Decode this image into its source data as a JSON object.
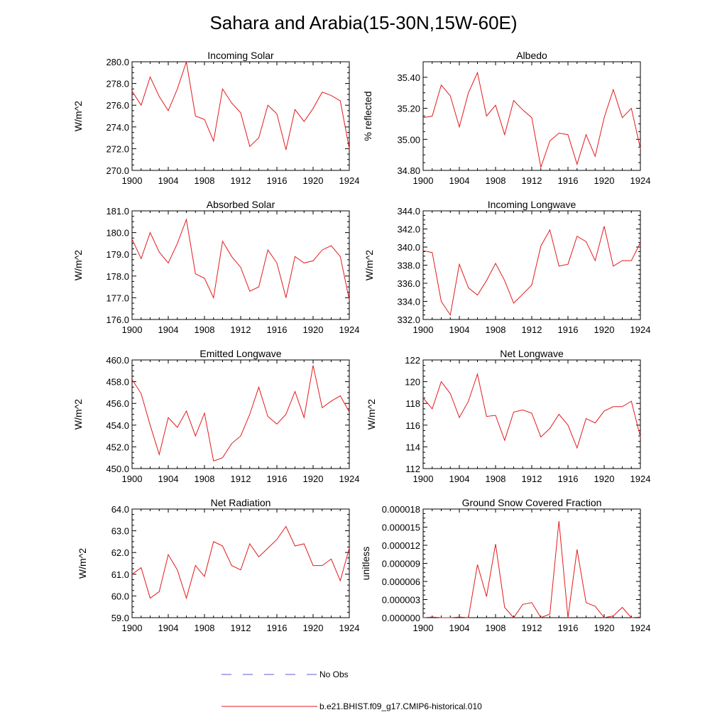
{
  "figure": {
    "title": "Sahara and Arabia(15-30N,15W-60E)"
  },
  "legend": {
    "items": [
      {
        "label": "No Obs",
        "color": "#5b5bd6",
        "style": "dashed"
      },
      {
        "label": "b.e21.BHIST.f09_g17.CMIP6-historical.010",
        "color": "#e31a1c",
        "style": "solid"
      }
    ]
  },
  "colors": {
    "series": "#e31a1c",
    "obs": "#5b5bd6"
  },
  "chart_data": [
    {
      "type": "line",
      "title": "Incoming Solar",
      "ylabel": "W/m^2",
      "xlim": [
        1900,
        1924
      ],
      "ylim": [
        270.0,
        280.0
      ],
      "xticks": [
        1900,
        1904,
        1908,
        1912,
        1916,
        1920,
        1924
      ],
      "xtick_labels": [
        "1900",
        "1904",
        "1908",
        "1912",
        "1916",
        "1920",
        "1924"
      ],
      "yticks": [
        270,
        272,
        274,
        276,
        278,
        280
      ],
      "ytick_labels": [
        "270.0",
        "272.0",
        "274.0",
        "276.0",
        "278.0",
        "280.0"
      ],
      "x": [
        1900,
        1901,
        1902,
        1903,
        1904,
        1905,
        1906,
        1907,
        1908,
        1909,
        1910,
        1911,
        1912,
        1913,
        1914,
        1915,
        1916,
        1917,
        1918,
        1919,
        1920,
        1921,
        1922,
        1923,
        1924
      ],
      "series": [
        {
          "name": "b.e21.BHIST.f09_g17.CMIP6-historical.010",
          "values": [
            277.3,
            276.0,
            278.6,
            276.8,
            275.5,
            277.5,
            280.0,
            275.0,
            274.7,
            272.7,
            277.5,
            276.2,
            275.3,
            272.2,
            273.0,
            276.0,
            275.2,
            271.9,
            275.6,
            274.5,
            275.7,
            277.2,
            276.9,
            276.4,
            272.0
          ]
        }
      ]
    },
    {
      "type": "line",
      "title": "Albedo",
      "ylabel": "% reflected",
      "xlim": [
        1900,
        1924
      ],
      "ylim": [
        34.8,
        35.5
      ],
      "xticks": [
        1900,
        1904,
        1908,
        1912,
        1916,
        1920,
        1924
      ],
      "xtick_labels": [
        "1900",
        "1904",
        "1908",
        "1912",
        "1916",
        "1920",
        "1924"
      ],
      "yticks": [
        34.8,
        35.0,
        35.2,
        35.4
      ],
      "ytick_labels": [
        "34.80",
        "35.00",
        "35.20",
        "35.40"
      ],
      "x": [
        1900,
        1901,
        1902,
        1903,
        1904,
        1905,
        1906,
        1907,
        1908,
        1909,
        1910,
        1911,
        1912,
        1913,
        1914,
        1915,
        1916,
        1917,
        1918,
        1919,
        1920,
        1921,
        1922,
        1923,
        1924
      ],
      "series": [
        {
          "name": "b.e21.BHIST.f09_g17.CMIP6-historical.010",
          "values": [
            35.14,
            35.15,
            35.35,
            35.28,
            35.08,
            35.3,
            35.43,
            35.15,
            35.22,
            35.03,
            35.25,
            35.19,
            35.14,
            34.82,
            34.99,
            35.04,
            35.03,
            34.84,
            35.03,
            34.89,
            35.14,
            35.32,
            35.14,
            35.2,
            34.94
          ]
        }
      ]
    },
    {
      "type": "line",
      "title": "Absorbed Solar",
      "ylabel": "W/m^2",
      "xlim": [
        1900,
        1924
      ],
      "ylim": [
        176.0,
        181.0
      ],
      "xticks": [
        1900,
        1904,
        1908,
        1912,
        1916,
        1920,
        1924
      ],
      "xtick_labels": [
        "1900",
        "1904",
        "1908",
        "1912",
        "1916",
        "1920",
        "1924"
      ],
      "yticks": [
        176,
        177,
        178,
        179,
        180,
        181
      ],
      "ytick_labels": [
        "176.0",
        "177.0",
        "178.0",
        "179.0",
        "180.0",
        "181.0"
      ],
      "x": [
        1900,
        1901,
        1902,
        1903,
        1904,
        1905,
        1906,
        1907,
        1908,
        1909,
        1910,
        1911,
        1912,
        1913,
        1914,
        1915,
        1916,
        1917,
        1918,
        1919,
        1920,
        1921,
        1922,
        1923,
        1924
      ],
      "series": [
        {
          "name": "b.e21.BHIST.f09_g17.CMIP6-historical.010",
          "values": [
            179.7,
            178.8,
            180.0,
            179.1,
            178.6,
            179.5,
            180.6,
            178.1,
            177.9,
            177.0,
            179.6,
            178.9,
            178.4,
            177.3,
            177.5,
            179.2,
            178.6,
            177.0,
            178.9,
            178.6,
            178.7,
            179.2,
            179.4,
            178.9,
            176.9
          ]
        }
      ]
    },
    {
      "type": "line",
      "title": "Incoming Longwave",
      "ylabel": "W/m^2",
      "xlim": [
        1900,
        1924
      ],
      "ylim": [
        332.0,
        344.0
      ],
      "xticks": [
        1900,
        1904,
        1908,
        1912,
        1916,
        1920,
        1924
      ],
      "xtick_labels": [
        "1900",
        "1904",
        "1908",
        "1912",
        "1916",
        "1920",
        "1924"
      ],
      "yticks": [
        332,
        334,
        336,
        338,
        340,
        342,
        344
      ],
      "ytick_labels": [
        "332.0",
        "334.0",
        "336.0",
        "338.0",
        "340.0",
        "342.0",
        "344.0"
      ],
      "x": [
        1900,
        1901,
        1902,
        1903,
        1904,
        1905,
        1906,
        1907,
        1908,
        1909,
        1910,
        1911,
        1912,
        1913,
        1914,
        1915,
        1916,
        1917,
        1918,
        1919,
        1920,
        1921,
        1922,
        1923,
        1924
      ],
      "series": [
        {
          "name": "b.e21.BHIST.f09_g17.CMIP6-historical.010",
          "values": [
            339.6,
            339.4,
            334.0,
            332.5,
            338.1,
            335.5,
            334.7,
            336.3,
            338.2,
            336.3,
            333.8,
            334.8,
            335.8,
            340.1,
            341.9,
            337.9,
            338.1,
            341.2,
            340.6,
            338.5,
            342.3,
            337.9,
            338.5,
            338.5,
            340.5
          ]
        }
      ]
    },
    {
      "type": "line",
      "title": "Emitted Longwave",
      "ylabel": "W/m^2",
      "xlim": [
        1900,
        1924
      ],
      "ylim": [
        450.0,
        460.0
      ],
      "xticks": [
        1900,
        1904,
        1908,
        1912,
        1916,
        1920,
        1924
      ],
      "xtick_labels": [
        "1900",
        "1904",
        "1908",
        "1912",
        "1916",
        "1920",
        "1924"
      ],
      "yticks": [
        450,
        452,
        454,
        456,
        458,
        460
      ],
      "ytick_labels": [
        "450.0",
        "452.0",
        "454.0",
        "456.0",
        "458.0",
        "460.0"
      ],
      "x": [
        1900,
        1901,
        1902,
        1903,
        1904,
        1905,
        1906,
        1907,
        1908,
        1909,
        1910,
        1911,
        1912,
        1913,
        1914,
        1915,
        1916,
        1917,
        1918,
        1919,
        1920,
        1921,
        1922,
        1923,
        1924
      ],
      "series": [
        {
          "name": "b.e21.BHIST.f09_g17.CMIP6-historical.010",
          "values": [
            458.2,
            456.9,
            454.0,
            451.3,
            454.7,
            453.8,
            455.3,
            453.0,
            455.1,
            450.7,
            451.0,
            452.3,
            453.0,
            455.0,
            457.5,
            454.8,
            454.1,
            455.0,
            457.1,
            454.7,
            459.5,
            455.6,
            456.2,
            456.7,
            455.2
          ]
        }
      ]
    },
    {
      "type": "line",
      "title": "Net Longwave",
      "ylabel": "W/m^2",
      "xlim": [
        1900,
        1924
      ],
      "ylim": [
        112,
        122
      ],
      "xticks": [
        1900,
        1904,
        1908,
        1912,
        1916,
        1920,
        1924
      ],
      "xtick_labels": [
        "1900",
        "1904",
        "1908",
        "1912",
        "1916",
        "1920",
        "1924"
      ],
      "yticks": [
        112,
        114,
        116,
        118,
        120,
        122
      ],
      "ytick_labels": [
        "112",
        "114",
        "116",
        "118",
        "120",
        "122"
      ],
      "x": [
        1900,
        1901,
        1902,
        1903,
        1904,
        1905,
        1906,
        1907,
        1908,
        1909,
        1910,
        1911,
        1912,
        1913,
        1914,
        1915,
        1916,
        1917,
        1918,
        1919,
        1920,
        1921,
        1922,
        1923,
        1924
      ],
      "series": [
        {
          "name": "b.e21.BHIST.f09_g17.CMIP6-historical.010",
          "values": [
            118.5,
            117.5,
            120.0,
            118.9,
            116.7,
            118.2,
            120.7,
            116.8,
            116.9,
            114.6,
            117.2,
            117.4,
            117.1,
            114.9,
            115.7,
            117.0,
            116.0,
            113.9,
            116.6,
            116.2,
            117.3,
            117.7,
            117.7,
            118.2,
            114.9
          ]
        }
      ]
    },
    {
      "type": "line",
      "title": "Net Radiation",
      "ylabel": "W/m^2",
      "xlim": [
        1900,
        1924
      ],
      "ylim": [
        59.0,
        64.0
      ],
      "xticks": [
        1900,
        1904,
        1908,
        1912,
        1916,
        1920,
        1924
      ],
      "xtick_labels": [
        "1900",
        "1904",
        "1908",
        "1912",
        "1916",
        "1920",
        "1924"
      ],
      "yticks": [
        59,
        60,
        61,
        62,
        63,
        64
      ],
      "ytick_labels": [
        "59.0",
        "60.0",
        "61.0",
        "62.0",
        "63.0",
        "64.0"
      ],
      "x": [
        1900,
        1901,
        1902,
        1903,
        1904,
        1905,
        1906,
        1907,
        1908,
        1909,
        1910,
        1911,
        1912,
        1913,
        1914,
        1915,
        1916,
        1917,
        1918,
        1919,
        1920,
        1921,
        1922,
        1923,
        1924
      ],
      "series": [
        {
          "name": "b.e21.BHIST.f09_g17.CMIP6-historical.010",
          "values": [
            61.0,
            61.3,
            59.9,
            60.2,
            61.9,
            61.2,
            59.9,
            61.4,
            60.9,
            62.5,
            62.3,
            61.4,
            61.2,
            62.4,
            61.8,
            62.2,
            62.6,
            63.2,
            62.3,
            62.4,
            61.4,
            61.4,
            61.7,
            60.7,
            62.2
          ]
        }
      ]
    },
    {
      "type": "line",
      "title": "Ground Snow Covered Fraction",
      "ylabel": "unitless",
      "xlim": [
        1900,
        1924
      ],
      "ylim": [
        0,
        1.8e-05
      ],
      "xticks": [
        1900,
        1904,
        1908,
        1912,
        1916,
        1920,
        1924
      ],
      "xtick_labels": [
        "1900",
        "1904",
        "1908",
        "1912",
        "1916",
        "1920",
        "1924"
      ],
      "yticks": [
        0,
        3e-06,
        6e-06,
        9e-06,
        1.2e-05,
        1.5e-05,
        1.8e-05
      ],
      "ytick_labels": [
        "0.000000",
        "0.000003",
        "0.000006",
        "0.000009",
        "0.000012",
        "0.000015",
        "0.000018"
      ],
      "x": [
        1900,
        1901,
        1902,
        1903,
        1904,
        1905,
        1906,
        1907,
        1908,
        1909,
        1910,
        1911,
        1912,
        1913,
        1914,
        1915,
        1916,
        1917,
        1918,
        1919,
        1920,
        1921,
        1922,
        1923,
        1924
      ],
      "series": [
        {
          "name": "b.e21.BHIST.f09_g17.CMIP6-historical.010",
          "values": [
            0,
            1e-07,
            0,
            0,
            1e-07,
            0,
            8.8e-06,
            3.5e-06,
            1.22e-05,
            1.7e-06,
            0,
            2.2e-06,
            2.5e-06,
            0,
            6e-07,
            1.6e-05,
            0,
            1.13e-05,
            2.5e-06,
            1.9e-06,
            0,
            3e-07,
            1.7e-06,
            0,
            1e-07
          ]
        }
      ]
    }
  ]
}
